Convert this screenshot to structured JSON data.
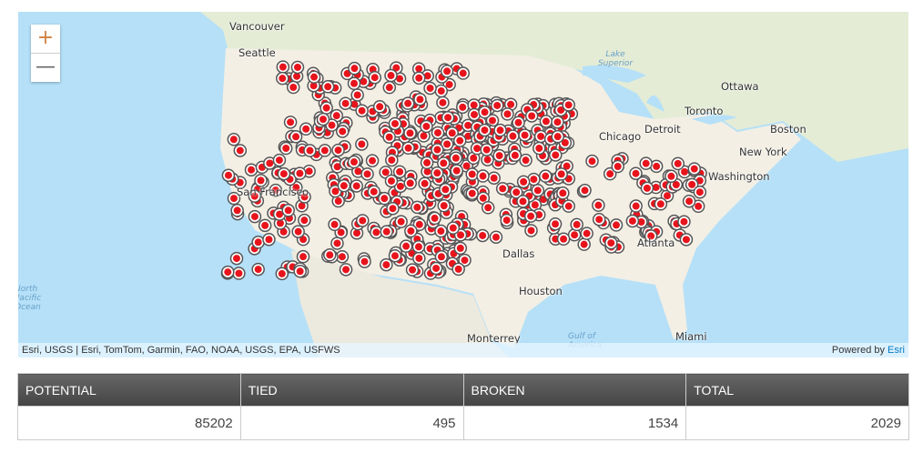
{
  "map": {
    "zoom_in": "+",
    "zoom_out": "—",
    "cities": [
      "Vancouver",
      "Seattle",
      "San Francisco",
      "Chicago",
      "Detroit",
      "Toronto",
      "Ottawa",
      "Boston",
      "New York",
      "Washington",
      "Atlanta",
      "Dallas",
      "Houston",
      "Monterrey",
      "Miami"
    ],
    "water": {
      "lake": "Lake Superior",
      "gulf": "Gulf of America",
      "pacific": "North Pacific Ocean"
    },
    "attribution": "Esri, USGS | Esri, TomTom, Garmin, FAO, NOAA, USGS, EPA, USFWS",
    "powered_by": "Powered by",
    "powered_link": "Esri",
    "marker_color": "#e8141c"
  },
  "table": {
    "headers": [
      "POTENTIAL",
      "TIED",
      "BROKEN",
      "TOTAL"
    ],
    "values": [
      "85202",
      "495",
      "1534",
      "2029"
    ]
  }
}
